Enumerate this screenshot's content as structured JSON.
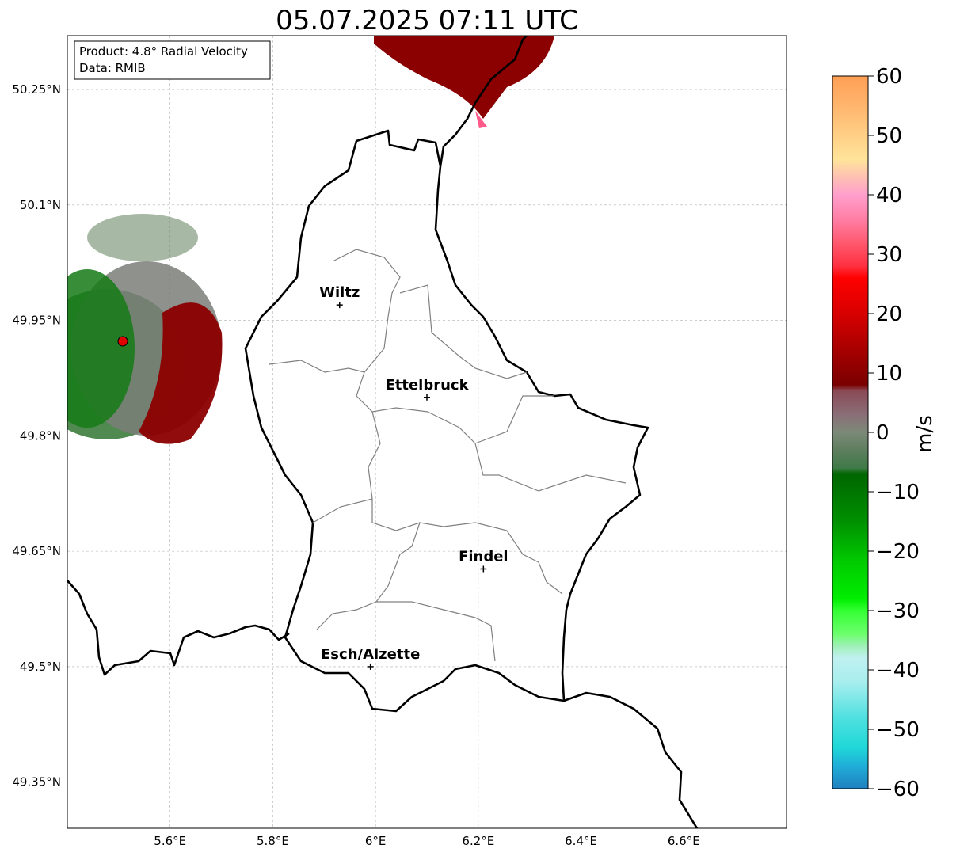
{
  "title": "05.07.2025 07:11 UTC",
  "info_box": {
    "product": "Product: 4.8° Radial Velocity",
    "data": "Data: RMIB"
  },
  "map": {
    "lon_range": [
      5.4,
      6.8
    ],
    "lat_range": [
      49.29,
      50.32
    ],
    "lon_ticks": [
      5.6,
      5.8,
      6.0,
      6.2,
      6.4,
      6.6
    ],
    "lon_tick_labels": [
      "5.6°E",
      "5.8°E",
      "6°E",
      "6.2°E",
      "6.4°E",
      "6.6°E"
    ],
    "lat_ticks": [
      50.25,
      50.1,
      49.95,
      49.8,
      49.65,
      49.5,
      49.35
    ],
    "lat_tick_labels": [
      "50.25°N",
      "50.1°N",
      "49.95°N",
      "49.8°N",
      "49.65°N",
      "49.5°N",
      "49.35°N"
    ],
    "grid": true,
    "radar_site": {
      "lon": 5.505,
      "lat": 49.915
    },
    "cities": [
      {
        "name": "Wiltz",
        "lon": 5.93,
        "lat": 49.97
      },
      {
        "name": "Ettelbruck",
        "lon": 6.1,
        "lat": 49.85
      },
      {
        "name": "Findel",
        "lon": 6.21,
        "lat": 49.627
      },
      {
        "name": "Esch/Alzette",
        "lon": 5.99,
        "lat": 49.5
      }
    ]
  },
  "colorbar": {
    "label": "m/s",
    "min": -60,
    "max": 60,
    "ticks": [
      60,
      50,
      40,
      30,
      20,
      10,
      0,
      -10,
      -20,
      -30,
      -40,
      -50,
      -60
    ],
    "tick_labels": [
      "60",
      "50",
      "40",
      "30",
      "20",
      "10",
      "0",
      "−10",
      "−20",
      "−30",
      "−40",
      "−50",
      "−60"
    ],
    "stops": [
      {
        "v": 60,
        "c": "#ff9f55"
      },
      {
        "v": 55,
        "c": "#ffb56d"
      },
      {
        "v": 50,
        "c": "#ffcf86"
      },
      {
        "v": 46,
        "c": "#ffe49a"
      },
      {
        "v": 43,
        "c": "#ffc1b3"
      },
      {
        "v": 40,
        "c": "#ff9fcc"
      },
      {
        "v": 36,
        "c": "#ff7fa6"
      },
      {
        "v": 32,
        "c": "#ff5a70"
      },
      {
        "v": 28,
        "c": "#ff3040"
      },
      {
        "v": 26,
        "c": "#ff0000"
      },
      {
        "v": 20,
        "c": "#d80000"
      },
      {
        "v": 14,
        "c": "#a80000"
      },
      {
        "v": 8,
        "c": "#7a0000"
      },
      {
        "v": 7,
        "c": "#8a4a55"
      },
      {
        "v": 3,
        "c": "#8a6e77"
      },
      {
        "v": 0,
        "c": "#7c8a78"
      },
      {
        "v": -3,
        "c": "#5e7e5e"
      },
      {
        "v": -6,
        "c": "#3f7a48"
      },
      {
        "v": -7,
        "c": "#006600"
      },
      {
        "v": -15,
        "c": "#009000"
      },
      {
        "v": -22,
        "c": "#00cc00"
      },
      {
        "v": -28,
        "c": "#00ee00"
      },
      {
        "v": -30,
        "c": "#33ff33"
      },
      {
        "v": -34,
        "c": "#6dff6d"
      },
      {
        "v": -36,
        "c": "#a0f0b8"
      },
      {
        "v": -38,
        "c": "#c0f0f0"
      },
      {
        "v": -42,
        "c": "#a8eeee"
      },
      {
        "v": -48,
        "c": "#50e0e0"
      },
      {
        "v": -53,
        "c": "#20d8d8"
      },
      {
        "v": -56,
        "c": "#20b0d8"
      },
      {
        "v": -60,
        "c": "#2080c0"
      }
    ]
  }
}
